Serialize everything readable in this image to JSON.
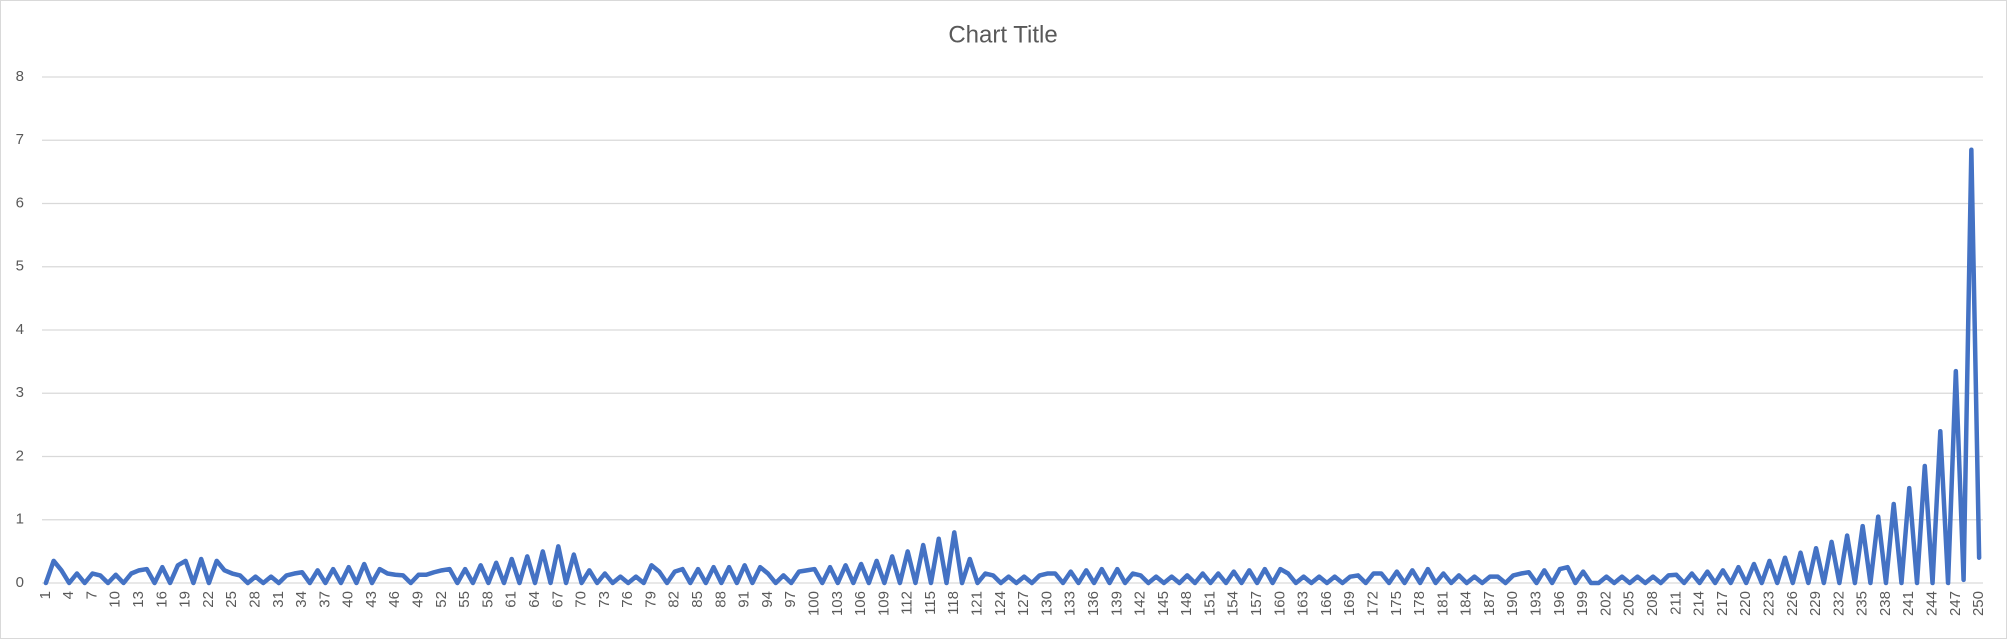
{
  "chart_data": {
    "type": "line",
    "title": "Chart Title",
    "categories": [
      "1",
      null,
      null,
      "4",
      null,
      null,
      "7",
      null,
      null,
      "10",
      null,
      null,
      "13",
      null,
      null,
      "16",
      null,
      null,
      "19",
      null,
      null,
      "22",
      null,
      null,
      "25",
      null,
      null,
      "28",
      null,
      null,
      "31",
      null,
      null,
      "34",
      null,
      null,
      "37",
      null,
      null,
      "40",
      null,
      null,
      "43",
      null,
      null,
      "46",
      null,
      null,
      "49",
      null,
      null,
      "52",
      null,
      null,
      "55",
      null,
      null,
      "58",
      null,
      null,
      "61",
      null,
      null,
      "64",
      null,
      null,
      "67",
      null,
      null,
      "70",
      null,
      null,
      "73",
      null,
      null,
      "76",
      null,
      null,
      "79",
      null,
      null,
      "82",
      null,
      null,
      "85",
      null,
      null,
      "88",
      null,
      null,
      "91",
      null,
      null,
      "94",
      null,
      null,
      "97",
      null,
      null,
      "100",
      null,
      null,
      "103",
      null,
      null,
      "106",
      null,
      null,
      "109",
      null,
      null,
      "112",
      null,
      null,
      "115",
      null,
      null,
      "118",
      null,
      null,
      "121",
      null,
      null,
      "124",
      null,
      null,
      "127",
      null,
      null,
      "130",
      null,
      null,
      "133",
      null,
      null,
      "136",
      null,
      null,
      "139",
      null,
      null,
      "142",
      null,
      null,
      "145",
      null,
      null,
      "148",
      null,
      null,
      "151",
      null,
      null,
      "154",
      null,
      null,
      "157",
      null,
      null,
      "160",
      null,
      null,
      "163",
      null,
      null,
      "166",
      null,
      null,
      "169",
      null,
      null,
      "172",
      null,
      null,
      "175",
      null,
      null,
      "178",
      null,
      null,
      "181",
      null,
      null,
      "184",
      null,
      null,
      "187",
      null,
      null,
      "190",
      null,
      null,
      "193",
      null,
      null,
      "196",
      null,
      null,
      "199",
      null,
      null,
      "202",
      null,
      null,
      "205",
      null,
      null,
      "208",
      null,
      null,
      "211",
      null,
      null,
      "214",
      null,
      null,
      "217",
      null,
      null,
      "220",
      null,
      null,
      "223",
      null,
      null,
      "226",
      null,
      null,
      "229",
      null,
      null,
      "232",
      null,
      null,
      "235",
      null,
      null,
      "238",
      null,
      null,
      "241",
      null,
      null,
      "244",
      null,
      null,
      "247",
      null,
      null,
      "250"
    ],
    "values": [
      0,
      0.35,
      0.2,
      0,
      0.15,
      0,
      0.15,
      0.12,
      0,
      0.13,
      0,
      0.15,
      0.2,
      0.22,
      0,
      0.25,
      0,
      0.28,
      0.35,
      0,
      0.38,
      0,
      0.35,
      0.2,
      0.15,
      0.12,
      0,
      0.1,
      0,
      0.1,
      0,
      0.12,
      0.15,
      0.17,
      0,
      0.2,
      0,
      0.22,
      0,
      0.25,
      0,
      0.3,
      0,
      0.22,
      0.15,
      0.13,
      0.12,
      0,
      0.13,
      0.13,
      0.17,
      0.2,
      0.22,
      0,
      0.22,
      0,
      0.28,
      0,
      0.32,
      0,
      0.38,
      0,
      0.42,
      0,
      0.5,
      0,
      0.58,
      0,
      0.45,
      0,
      0.2,
      0,
      0.15,
      0,
      0.1,
      0,
      0.1,
      0,
      0.28,
      0.18,
      0,
      0.18,
      0.22,
      0,
      0.22,
      0,
      0.25,
      0,
      0.25,
      0,
      0.28,
      0,
      0.25,
      0.15,
      0,
      0.12,
      0,
      0.18,
      0.2,
      0.22,
      0,
      0.25,
      0,
      0.28,
      0,
      0.3,
      0,
      0.35,
      0,
      0.42,
      0,
      0.5,
      0,
      0.6,
      0,
      0.7,
      0,
      0.8,
      0,
      0.38,
      0,
      0.15,
      0.12,
      0,
      0.1,
      0,
      0.1,
      0,
      0.12,
      0.15,
      0.15,
      0,
      0.18,
      0,
      0.2,
      0,
      0.22,
      0,
      0.22,
      0,
      0.15,
      0.12,
      0,
      0.1,
      0,
      0.1,
      0,
      0.12,
      0,
      0.15,
      0,
      0.15,
      0,
      0.18,
      0,
      0.2,
      0,
      0.22,
      0,
      0.22,
      0.15,
      0,
      0.1,
      0,
      0.1,
      0,
      0.1,
      0,
      0.1,
      0.12,
      0,
      0.15,
      0.15,
      0,
      0.18,
      0,
      0.2,
      0,
      0.22,
      0,
      0.15,
      0,
      0.12,
      0,
      0.1,
      0,
      0.1,
      0.1,
      0,
      0.12,
      0.15,
      0.17,
      0,
      0.2,
      0,
      0.22,
      0.25,
      0,
      0.18,
      0,
      0,
      0.1,
      0,
      0.1,
      0,
      0.1,
      0,
      0.1,
      0,
      0.12,
      0.13,
      0,
      0.15,
      0,
      0.18,
      0,
      0.2,
      0,
      0.25,
      0,
      0.3,
      0,
      0.35,
      0,
      0.4,
      0,
      0.48,
      0,
      0.55,
      0,
      0.65,
      0,
      0.75,
      0,
      0.9,
      0,
      1.05,
      0,
      1.25,
      0,
      1.5,
      0,
      1.85,
      0,
      2.4,
      0,
      3.35,
      0.05,
      6.85,
      0.4
    ],
    "color": "#4472c4",
    "ylim": [
      0,
      8
    ],
    "yticks": [
      0,
      1,
      2,
      3,
      4,
      5,
      6,
      7,
      8
    ],
    "grid": true
  }
}
